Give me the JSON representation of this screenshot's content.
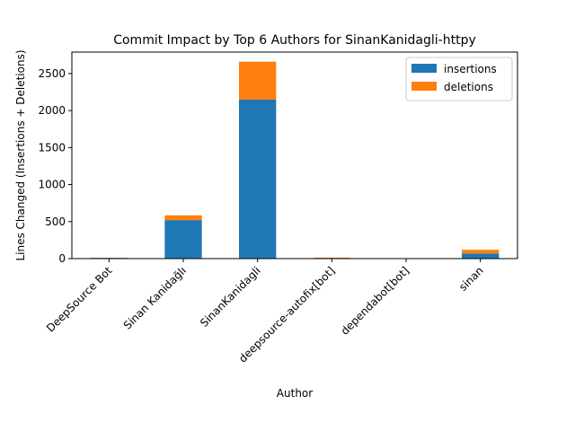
{
  "chart_data": {
    "type": "bar",
    "stacked": true,
    "title": "Commit Impact by Top 6 Authors for SinanKanidagli-httpy",
    "xlabel": "Author",
    "ylabel": "Lines Changed (Insertions + Deletions)",
    "categories": [
      "DeepSource Bot",
      "Sinan Kanidağlı",
      "SinanKanidagli",
      "deepsource-autofix[bot]",
      "dependabot[bot]",
      "sinan"
    ],
    "series": [
      {
        "name": "insertions",
        "color": "#1f77b4",
        "values": [
          10,
          520,
          2150,
          5,
          1,
          70
        ]
      },
      {
        "name": "deletions",
        "color": "#ff7f0e",
        "values": [
          2,
          65,
          510,
          8,
          1,
          50
        ]
      }
    ],
    "ylim": [
      0,
      2790
    ],
    "yticks": [
      0,
      500,
      1000,
      1500,
      2000,
      2500
    ],
    "grid": false,
    "legend_position": "top-right"
  }
}
